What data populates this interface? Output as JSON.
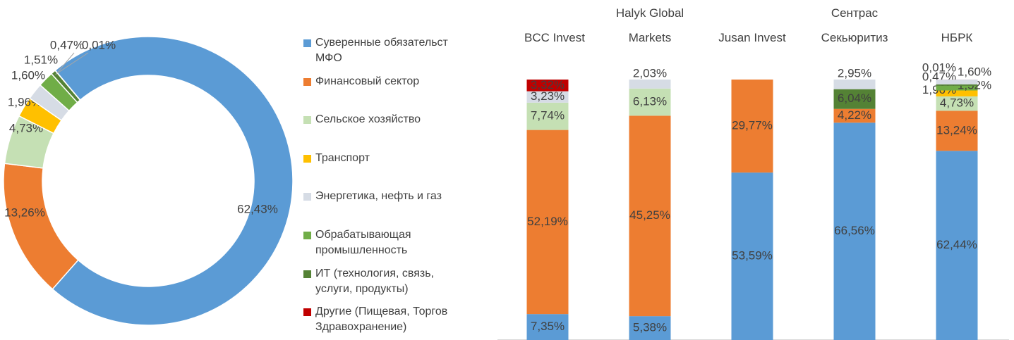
{
  "chart_data": [
    {
      "type": "pie",
      "categories": [
        "Суверенные обязательст\nМФО",
        "Финансовый сектор",
        "Сельское хозяйство",
        "Транспорт",
        "Энергетика, нефть и газ",
        "Обрабатывающая\nпромышленность",
        "ИТ (технология, связь,\nуслуги, продукты)",
        "Другие (Пищевая, Торгов\nЗдравохранение)"
      ],
      "values": [
        62.43,
        13.26,
        4.73,
        1.96,
        1.6,
        1.51,
        0.47,
        0.01
      ],
      "value_labels": [
        "62,43%",
        "13,26%",
        "4,73%",
        "1,96%",
        "1,60%",
        "1,51%",
        "0,47%",
        "0,01%"
      ],
      "colors": [
        "#5b9bd5",
        "#ed7d31",
        "#c5e0b4",
        "#ffc000",
        "#d6dce5",
        "#70ad47",
        "#548235",
        "#c00000"
      ]
    },
    {
      "type": "bar",
      "stacked": "percent",
      "categories": [
        "BCC Invest",
        "Halyk Global\nMarkets",
        "Jusan Invest",
        "Сентрас\nСекьюритиз",
        "НБРК"
      ],
      "series": [
        {
          "color": "#5b9bd5",
          "values": [
            7.35,
            5.38,
            53.59,
            66.56,
            62.44
          ],
          "value_labels": [
            "7,35%",
            "5,38%",
            "53,59%",
            "66,56%",
            "62,44%"
          ]
        },
        {
          "color": "#ed7d31",
          "values": [
            52.19,
            45.25,
            29.77,
            4.22,
            13.24
          ],
          "value_labels": [
            "52,19%",
            "45,25%",
            "29,77%",
            "4,22%",
            "13,24%"
          ]
        },
        {
          "color": "#c5e0b4",
          "values": [
            7.74,
            6.13,
            null,
            null,
            4.73
          ],
          "value_labels": [
            "7,74%",
            "6,13%",
            null,
            null,
            "4,73%"
          ]
        },
        {
          "color": "#ffc000",
          "values": [
            null,
            null,
            null,
            null,
            1.96
          ],
          "value_labels": [
            null,
            null,
            null,
            null,
            "1,96%"
          ]
        },
        {
          "color": "#70ad47",
          "values": [
            null,
            null,
            null,
            null,
            1.52
          ],
          "value_labels": [
            null,
            null,
            null,
            null,
            "1,52%"
          ]
        },
        {
          "color": "#548235",
          "values": [
            null,
            null,
            null,
            6.04,
            0.47
          ],
          "value_labels": [
            null,
            null,
            null,
            "6,04%",
            "0,47%"
          ]
        },
        {
          "color": "#d6dce5",
          "values": [
            3.23,
            2.03,
            null,
            2.95,
            1.6
          ],
          "value_labels": [
            "3,23%",
            "2,03%",
            null,
            "2,95%",
            "1,60%"
          ]
        },
        {
          "color": "#c00000",
          "values": [
            3.32,
            null,
            null,
            null,
            0.01
          ],
          "value_labels": [
            "3,32%",
            null,
            null,
            null,
            "0,01%"
          ]
        }
      ]
    }
  ]
}
